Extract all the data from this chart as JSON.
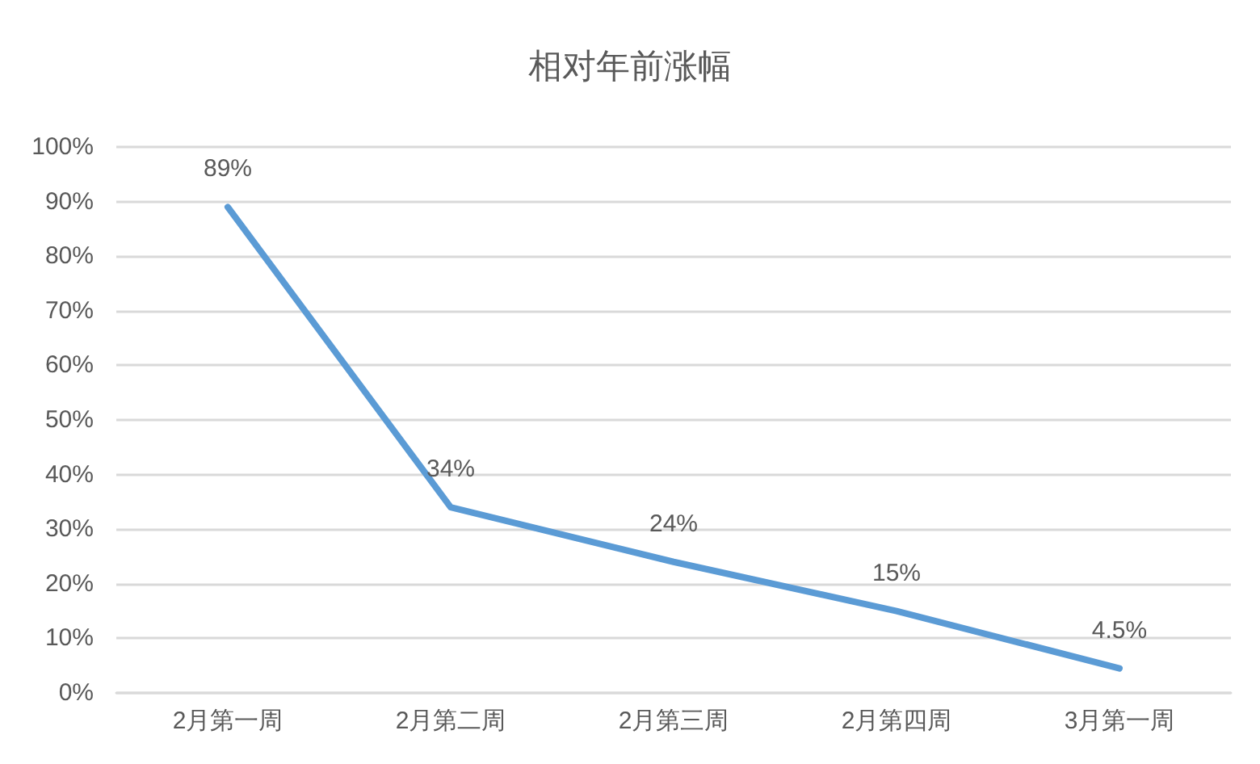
{
  "chart_data": {
    "type": "line",
    "title": "相对年前涨幅",
    "categories": [
      "2月第一周",
      "2月第二周",
      "2月第三周",
      "2月第四周",
      "3月第一周"
    ],
    "series": [
      {
        "color": "#5b9bd5",
        "values": [
          89,
          34,
          24,
          15,
          4.5
        ],
        "value_labels": [
          "89%",
          "34%",
          "24%",
          "15%",
          "4.5%"
        ]
      }
    ],
    "ylim": [
      0,
      100
    ],
    "yticks": [
      {
        "value": 0,
        "label": "0%"
      },
      {
        "value": 10,
        "label": "10%"
      },
      {
        "value": 20,
        "label": "20%"
      },
      {
        "value": 30,
        "label": "30%"
      },
      {
        "value": 40,
        "label": "40%"
      },
      {
        "value": 50,
        "label": "50%"
      },
      {
        "value": 60,
        "label": "60%"
      },
      {
        "value": 70,
        "label": "70%"
      },
      {
        "value": 80,
        "label": "80%"
      },
      {
        "value": 90,
        "label": "90%"
      },
      {
        "value": 100,
        "label": "100%"
      }
    ],
    "grid": "y",
    "marker": "none",
    "line_style": "solid"
  }
}
